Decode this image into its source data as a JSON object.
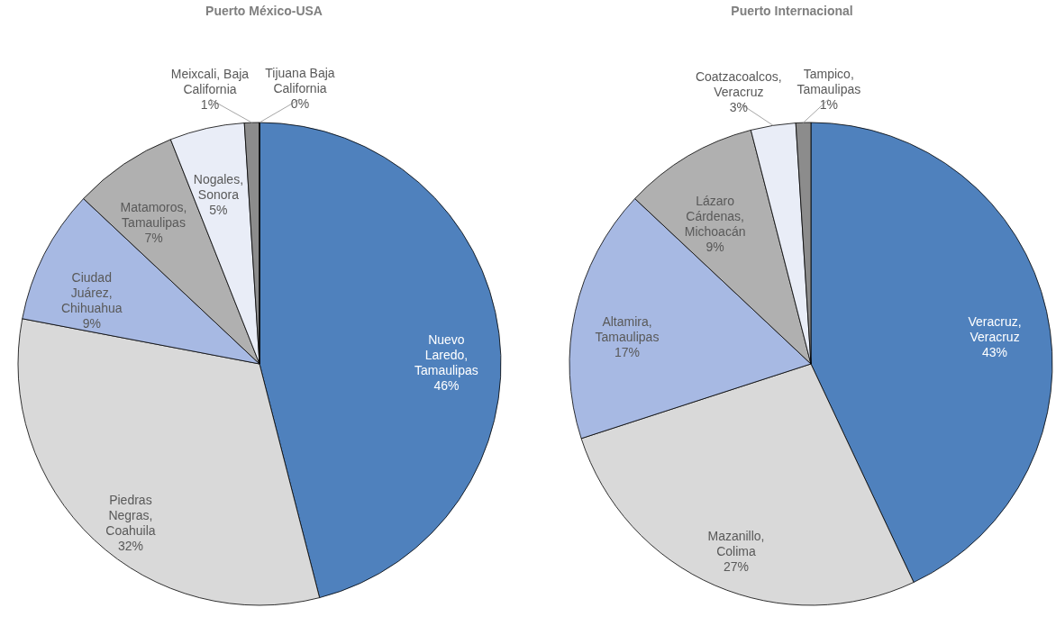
{
  "chart_data": [
    {
      "type": "pie",
      "title": "Puerto México-USA",
      "categories": [
        "Nuevo Laredo, Tamaulipas",
        "Piedras Negras, Coahuila",
        "Ciudad Juárez, Chihuahua",
        "Matamoros, Tamaulipas",
        "Nogales, Sonora",
        "Meixcali, Baja California",
        "Tijuana Baja California"
      ],
      "values": [
        46,
        32,
        9,
        7,
        5,
        1,
        0
      ],
      "colors": [
        "#4f81bd",
        "#d9d9d9",
        "#a7b9e3",
        "#b0b0b0",
        "#e9edf7",
        "#8c8c8c",
        "#ffffff"
      ],
      "value_labels": [
        "46%",
        "32%",
        "9%",
        "7%",
        "5%",
        "1%",
        "0%"
      ]
    },
    {
      "type": "pie",
      "title": "Puerto Internacional",
      "categories": [
        "Veracruz, Veracruz",
        "Mazanillo, Colima",
        "Altamira, Tamaulipas",
        "Lázaro Cárdenas, Michoacán",
        "Coatzacoalcos, Veracruz",
        "Tampico, Tamaulipas"
      ],
      "values": [
        43,
        27,
        17,
        9,
        3,
        1
      ],
      "colors": [
        "#4f81bd",
        "#d9d9d9",
        "#a7b9e3",
        "#b0b0b0",
        "#e9edf7",
        "#8c8c8c"
      ],
      "value_labels": [
        "43%",
        "27%",
        "17%",
        "9%",
        "3%",
        "1%"
      ]
    }
  ]
}
